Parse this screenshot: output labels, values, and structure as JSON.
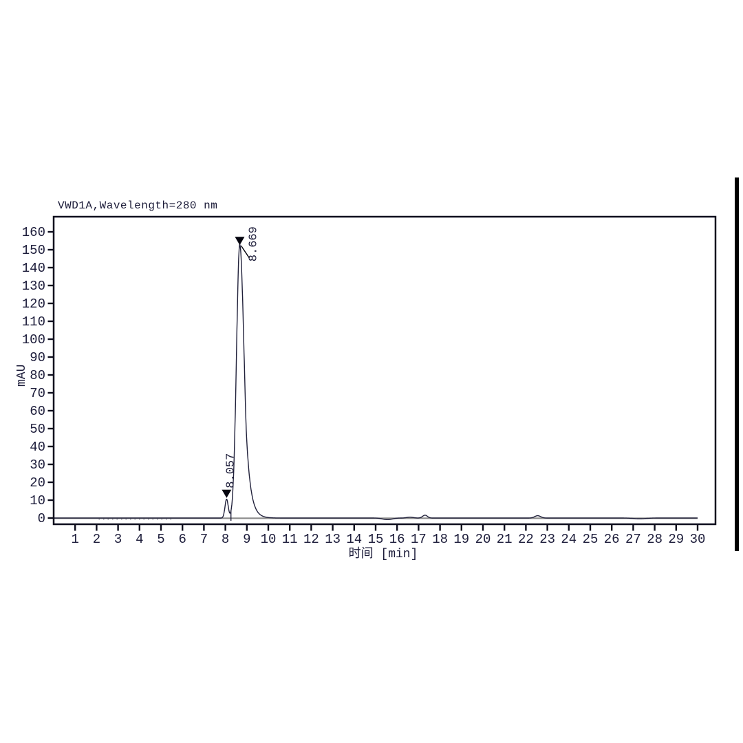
{
  "chart_data": {
    "type": "line",
    "title": "VWD1A,Wavelength=280 nm",
    "xlabel": "时间 [min]",
    "ylabel": "mAU",
    "x_unit": "min",
    "y_unit": "mAU",
    "xlim": [
      0,
      30.8
    ],
    "ylim": [
      0,
      168
    ],
    "x_ticks": [
      1,
      2,
      3,
      4,
      5,
      6,
      7,
      8,
      9,
      10,
      11,
      12,
      13,
      14,
      15,
      16,
      17,
      18,
      19,
      20,
      21,
      22,
      23,
      24,
      25,
      26,
      27,
      28,
      29,
      30
    ],
    "y_ticks": [
      0,
      10,
      20,
      30,
      40,
      50,
      60,
      70,
      80,
      90,
      100,
      110,
      120,
      130,
      140,
      150,
      160
    ],
    "grid": false,
    "legend": false,
    "baseline_mau": 0,
    "peaks": [
      {
        "label": "8.057",
        "retention_time": 8.057,
        "height_mau": 10.5,
        "sigma_left": 0.075,
        "sigma_right": 0.075
      },
      {
        "label": "8.669",
        "retention_time": 8.669,
        "height_mau": 153,
        "sigma_left": 0.15,
        "sigma_right": 0.2,
        "tail_start": 0.3,
        "tail_tau": 0.2
      }
    ],
    "valley_dropline_time": 8.26,
    "minor_features": [
      {
        "time": 15.55,
        "height_mau": -0.9,
        "sigma": 0.22
      },
      {
        "time": 16.6,
        "height_mau": 0.5,
        "sigma": 0.15
      },
      {
        "time": 17.3,
        "height_mau": 1.6,
        "sigma": 0.11
      },
      {
        "time": 22.55,
        "height_mau": 1.3,
        "sigma": 0.14
      },
      {
        "time": 27.3,
        "height_mau": -0.4,
        "sigma": 0.3
      }
    ]
  },
  "colors": {
    "ink": "#1c1c3a",
    "axis": "#0d0d1d",
    "trace": "#20203a",
    "integrator_baseline": "#8c8c8c",
    "marker": "#05050f",
    "background": "#ffffff",
    "scan_bar": "#000000"
  }
}
